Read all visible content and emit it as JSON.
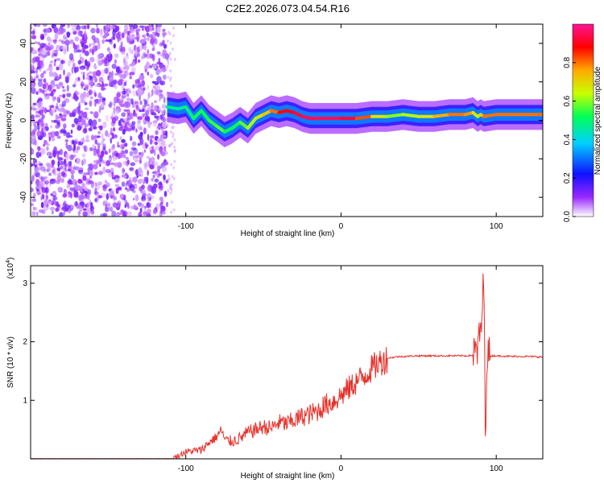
{
  "chart_data": [
    {
      "type": "heatmap",
      "title": "C2E2.2026.073.04.54.R16",
      "xlabel": "Height of straight line (km)",
      "ylabel": "Frequency (Hz)",
      "xlim": [
        -200,
        130
      ],
      "ylim": [
        -50,
        50
      ],
      "x_ticks": [
        -100,
        0,
        100
      ],
      "x_tick_labels": [
        "-100",
        "0",
        "100"
      ],
      "y_ticks": [
        -40,
        -20,
        0,
        20,
        40
      ],
      "y_tick_labels": [
        "-40",
        "-20",
        "0",
        "20",
        "40"
      ],
      "noise_region_x": [
        -200,
        -112
      ],
      "ridge_width_hz": 1.5,
      "ridge": {
        "x": [
          -112,
          -105,
          -100,
          -95,
          -90,
          -85,
          -80,
          -75,
          -70,
          -65,
          -60,
          -55,
          -50,
          -45,
          -40,
          -35,
          -30,
          -25,
          -20,
          -15,
          -10,
          -5,
          0,
          10,
          20,
          30,
          40,
          50,
          60,
          70,
          80,
          85,
          88,
          90,
          92,
          100,
          110,
          120,
          130
        ],
        "y": [
          7,
          6,
          7,
          1,
          5,
          0,
          -3,
          -6,
          -4,
          -1,
          -4,
          1,
          3,
          5,
          4,
          5,
          4,
          2,
          1,
          1,
          1,
          1,
          1,
          1,
          2,
          2,
          3,
          2,
          2,
          3,
          3,
          4,
          2,
          3,
          2,
          3,
          3,
          3,
          3
        ],
        "amp": [
          0.45,
          0.5,
          0.45,
          0.5,
          0.55,
          0.5,
          0.6,
          0.55,
          0.5,
          0.55,
          0.6,
          0.65,
          0.7,
          0.75,
          0.85,
          0.9,
          0.9,
          0.95,
          0.95,
          0.95,
          0.95,
          0.95,
          0.95,
          0.9,
          0.75,
          0.6,
          0.6,
          0.65,
          0.7,
          0.8,
          0.8,
          0.75,
          0.6,
          0.65,
          0.8,
          0.8,
          0.8,
          0.8,
          0.8
        ]
      }
    },
    {
      "type": "colorbar",
      "label": "Normalized spectral amplitude",
      "range": [
        0,
        1
      ],
      "ticks": [
        0.0,
        0.2,
        0.4,
        0.6,
        0.8
      ],
      "tick_labels": [
        "0.0",
        "0.2",
        "0.4",
        "0.6",
        "0.8"
      ],
      "colormap": [
        "#ffffff",
        "#9a28ff",
        "#1010ff",
        "#00d0ff",
        "#00ff55",
        "#c8ff00",
        "#ffaa00",
        "#ff0000",
        "#ff1494"
      ]
    },
    {
      "type": "line",
      "xlabel": "Height of straight line (km)",
      "ylabel": "SNR (10 * v/v)",
      "scale_label": "(x10",
      "scale_exponent": "4",
      "scale_suffix": ")",
      "xlim": [
        -200,
        130
      ],
      "ylim": [
        0,
        3.3
      ],
      "x_ticks": [
        -100,
        0,
        100
      ],
      "x_tick_labels": [
        "-100",
        "0",
        "100"
      ],
      "y_ticks": [
        1,
        2,
        3
      ],
      "y_tick_labels": [
        "1",
        "2",
        "3"
      ],
      "line_color": "#e8302a",
      "series": [
        {
          "name": "SNR",
          "x": [
            -200,
            -110,
            -105,
            -100,
            -90,
            -85,
            -80,
            -77,
            -75,
            -70,
            -65,
            -60,
            -55,
            -50,
            -45,
            -40,
            -35,
            -30,
            -25,
            -20,
            -15,
            -10,
            -5,
            0,
            5,
            10,
            15,
            20,
            25,
            30,
            35,
            40,
            50,
            60,
            70,
            80,
            85,
            88,
            90,
            91,
            92,
            93,
            94,
            95,
            100,
            110,
            120,
            130
          ],
          "y": [
            0.0,
            0.0,
            0.05,
            0.12,
            0.15,
            0.28,
            0.38,
            0.5,
            0.32,
            0.3,
            0.35,
            0.45,
            0.5,
            0.55,
            0.52,
            0.62,
            0.6,
            0.66,
            0.72,
            0.76,
            0.82,
            0.92,
            0.98,
            1.08,
            1.2,
            1.32,
            1.42,
            1.55,
            1.65,
            1.72,
            1.74,
            1.75,
            1.76,
            1.76,
            1.76,
            1.76,
            1.77,
            1.85,
            2.2,
            2.5,
            3.2,
            0.4,
            1.8,
            1.76,
            1.76,
            1.75,
            1.75,
            1.74
          ]
        }
      ]
    }
  ]
}
